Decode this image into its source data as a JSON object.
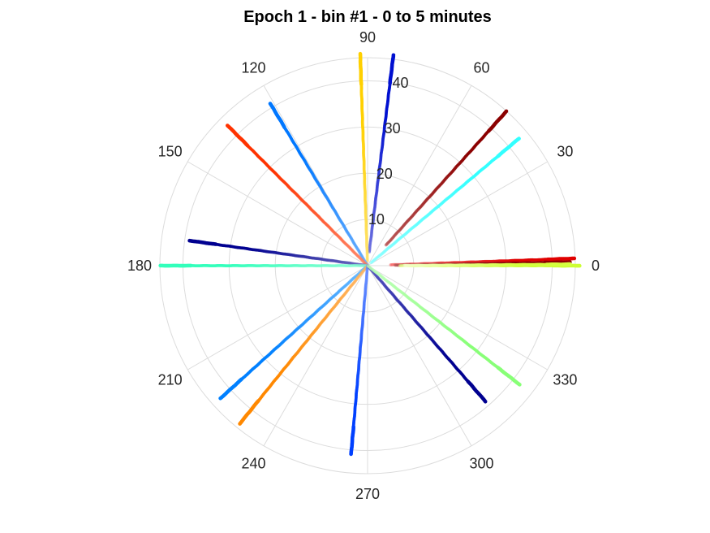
{
  "chart_data": {
    "type": "scatter",
    "subtype": "polar",
    "title": "Epoch 1 - bin #1 - 0 to 5 minutes",
    "theta_unit": "degrees",
    "theta_ticks": [
      "0",
      "30",
      "60",
      "90",
      "120",
      "150",
      "180",
      "210",
      "240",
      "270",
      "300",
      "330"
    ],
    "r_ticks": [
      "10",
      "20",
      "30",
      "40"
    ],
    "r_lim": [
      0,
      45
    ],
    "grid": true,
    "series": [
      {
        "theta": 2,
        "r_min": 5,
        "r_max": 45,
        "color": "#e00000",
        "fade": "#ff8a8a"
      },
      {
        "theta": 1,
        "r_min": 6,
        "r_max": 44,
        "color": "#8b0000",
        "fade": "#c07070"
      },
      {
        "theta": 0,
        "r_min": 7,
        "r_max": 46,
        "color": "#ccff33",
        "fade": "#eaffb0"
      },
      {
        "theta": 0.4,
        "r_min": 8,
        "r_max": 44,
        "color": "#d4ff40",
        "fade": "#ffffff"
      },
      {
        "theta": 40,
        "r_min": 1,
        "r_max": 43,
        "color": "#33ffff",
        "fade": "#a0ffff"
      },
      {
        "theta": 48,
        "r_min": 6,
        "r_max": 45,
        "color": "#8b0000",
        "fade": "#c06060"
      },
      {
        "theta": 83,
        "r_min": 3,
        "r_max": 46,
        "color": "#0010d0",
        "fade": "#8080e0"
      },
      {
        "theta": 92,
        "r_min": 1,
        "r_max": 46,
        "color": "#ffd000",
        "fade": "#ffe680"
      },
      {
        "theta": 121,
        "r_min": 0,
        "r_max": 41,
        "color": "#0077ff",
        "fade": "#80bbff"
      },
      {
        "theta": 135,
        "r_min": 0,
        "r_max": 43,
        "color": "#ff3300",
        "fade": "#ff9980"
      },
      {
        "theta": 172,
        "r_min": 0,
        "r_max": 39,
        "color": "#000090",
        "fade": "#8080c8"
      },
      {
        "theta": 180,
        "r_min": 0,
        "r_max": 45,
        "color": "#33ffbb",
        "fade": "#aaffdd"
      },
      {
        "theta": 222,
        "r_min": 0,
        "r_max": 43,
        "color": "#0080ff",
        "fade": "#80c8ff"
      },
      {
        "theta": 231,
        "r_min": 0,
        "r_max": 44,
        "color": "#ff8800",
        "fade": "#ffc480"
      },
      {
        "theta": 265,
        "r_min": 0,
        "r_max": 41,
        "color": "#0040ff",
        "fade": "#80a0ff"
      },
      {
        "theta": 311,
        "r_min": 0,
        "r_max": 39,
        "color": "#000090",
        "fade": "#6060c8"
      },
      {
        "theta": 322,
        "r_min": 0,
        "r_max": 42,
        "color": "#88ff77",
        "fade": "#ccffcc"
      }
    ]
  }
}
